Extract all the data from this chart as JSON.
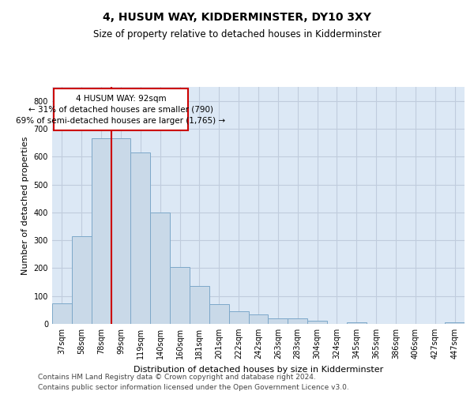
{
  "title": "4, HUSUM WAY, KIDDERMINSTER, DY10 3XY",
  "subtitle": "Size of property relative to detached houses in Kidderminster",
  "xlabel": "Distribution of detached houses by size in Kidderminster",
  "ylabel": "Number of detached properties",
  "categories": [
    "37sqm",
    "58sqm",
    "78sqm",
    "99sqm",
    "119sqm",
    "140sqm",
    "160sqm",
    "181sqm",
    "201sqm",
    "222sqm",
    "242sqm",
    "263sqm",
    "283sqm",
    "304sqm",
    "324sqm",
    "345sqm",
    "365sqm",
    "386sqm",
    "406sqm",
    "427sqm",
    "447sqm"
  ],
  "values": [
    75,
    315,
    665,
    665,
    615,
    400,
    205,
    135,
    70,
    45,
    35,
    20,
    20,
    12,
    0,
    7,
    0,
    0,
    0,
    0,
    7
  ],
  "bar_color": "#c9d9e8",
  "bar_edge_color": "#7da8c9",
  "vline_color": "#cc0000",
  "annotation_line1": "4 HUSUM WAY: 92sqm",
  "annotation_line2": "← 31% of detached houses are smaller (790)",
  "annotation_line3": "69% of semi-detached houses are larger (1,765) →",
  "ylim": [
    0,
    850
  ],
  "yticks": [
    0,
    100,
    200,
    300,
    400,
    500,
    600,
    700,
    800
  ],
  "grid_color": "#c0ccdd",
  "bg_color": "#dce8f5",
  "footer_line1": "Contains HM Land Registry data © Crown copyright and database right 2024.",
  "footer_line2": "Contains public sector information licensed under the Open Government Licence v3.0.",
  "title_fontsize": 10,
  "subtitle_fontsize": 8.5,
  "xlabel_fontsize": 8,
  "ylabel_fontsize": 8,
  "tick_fontsize": 7,
  "annotation_fontsize": 7.5,
  "footer_fontsize": 6.5
}
